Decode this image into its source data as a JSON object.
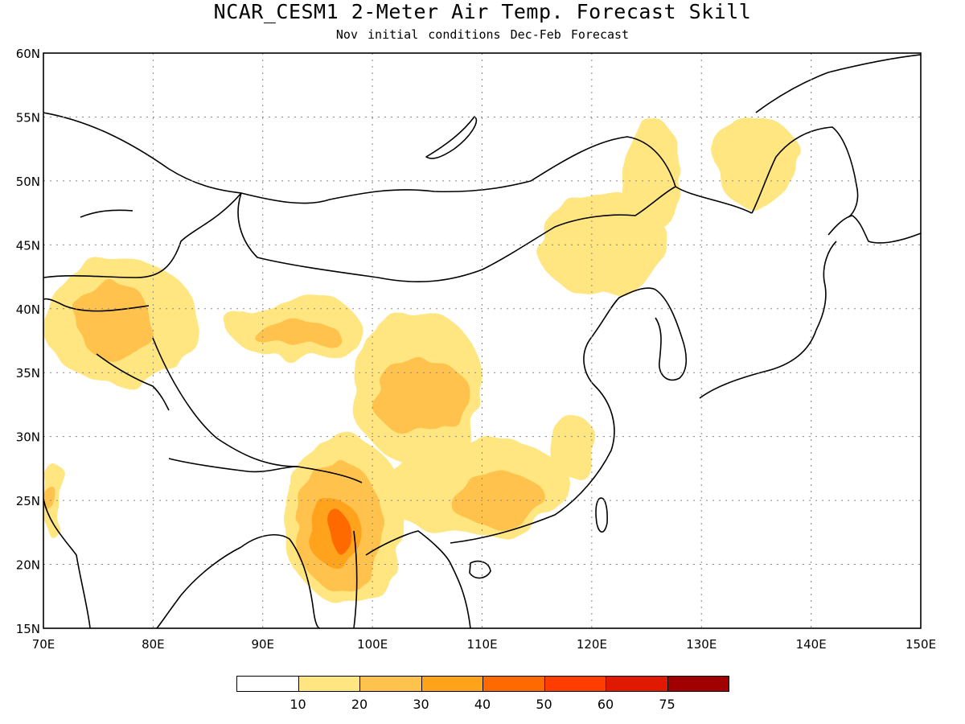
{
  "title": "NCAR_CESM1 2-Meter Air Temp. Forecast Skill",
  "subtitle": "Nov initial conditions  Dec-Feb Forecast",
  "map": {
    "lon_range": [
      70,
      150
    ],
    "lat_range": [
      15,
      60
    ],
    "lon_ticks": [
      "70E",
      "80E",
      "90E",
      "100E",
      "110E",
      "120E",
      "130E",
      "140E",
      "150E"
    ],
    "lat_ticks": [
      "15N",
      "20N",
      "25N",
      "30N",
      "35N",
      "40N",
      "45N",
      "50N",
      "55N",
      "60N"
    ],
    "grid": "dotted",
    "coastline_color": "#000000"
  },
  "colorbar": {
    "colors": [
      "#ffffff",
      "#ffe680",
      "#ffc34d",
      "#ffa31a",
      "#ff6a00",
      "#ff3d00",
      "#e01a00",
      "#a00000"
    ],
    "labels": [
      "10",
      "20",
      "30",
      "40",
      "50",
      "60",
      "75"
    ]
  },
  "chart_data": {
    "type": "heatmap",
    "title": "NCAR_CESM1 2-Meter Air Temp. Forecast Skill",
    "subtitle": "Nov initial conditions  Dec-Feb Forecast",
    "xlim": [
      70,
      150
    ],
    "ylim": [
      15,
      60
    ],
    "levels": [
      10,
      20,
      30,
      40,
      50,
      60,
      75
    ],
    "regions": [
      {
        "level": 10,
        "lon": [
          70,
          84
        ],
        "lat": [
          34,
          44
        ]
      },
      {
        "level": 20,
        "lon": [
          73,
          80
        ],
        "lat": [
          36,
          42
        ]
      },
      {
        "level": 10,
        "lon": [
          87,
          99
        ],
        "lat": [
          36,
          41
        ]
      },
      {
        "level": 20,
        "lon": [
          89,
          97
        ],
        "lat": [
          37,
          39
        ]
      },
      {
        "level": 10,
        "lon": [
          98,
          110
        ],
        "lat": [
          28,
          40
        ]
      },
      {
        "level": 20,
        "lon": [
          100,
          109
        ],
        "lat": [
          30,
          36
        ]
      },
      {
        "level": 10,
        "lon": [
          101,
          118
        ],
        "lat": [
          22,
          30
        ]
      },
      {
        "level": 20,
        "lon": [
          107,
          116
        ],
        "lat": [
          23,
          27
        ]
      },
      {
        "level": 10,
        "lon": [
          92,
          103
        ],
        "lat": [
          17,
          30
        ]
      },
      {
        "level": 20,
        "lon": [
          93,
          101
        ],
        "lat": [
          18,
          28
        ]
      },
      {
        "level": 30,
        "lon": [
          94,
          99
        ],
        "lat": [
          20,
          25
        ]
      },
      {
        "level": 40,
        "lon": [
          96,
          98
        ],
        "lat": [
          21,
          24
        ]
      },
      {
        "level": 10,
        "lon": [
          116,
          120
        ],
        "lat": [
          27,
          32
        ]
      },
      {
        "level": 10,
        "lon": [
          123,
          128
        ],
        "lat": [
          46,
          55
        ]
      },
      {
        "level": 10,
        "lon": [
          131,
          139
        ],
        "lat": [
          48,
          55
        ]
      },
      {
        "level": 10,
        "lon": [
          115,
          127
        ],
        "lat": [
          41,
          49
        ]
      },
      {
        "level": 10,
        "lon": [
          70,
          72
        ],
        "lat": [
          22,
          28
        ]
      },
      {
        "level": 20,
        "lon": [
          70,
          71.5
        ],
        "lat": [
          24,
          26
        ]
      }
    ]
  }
}
